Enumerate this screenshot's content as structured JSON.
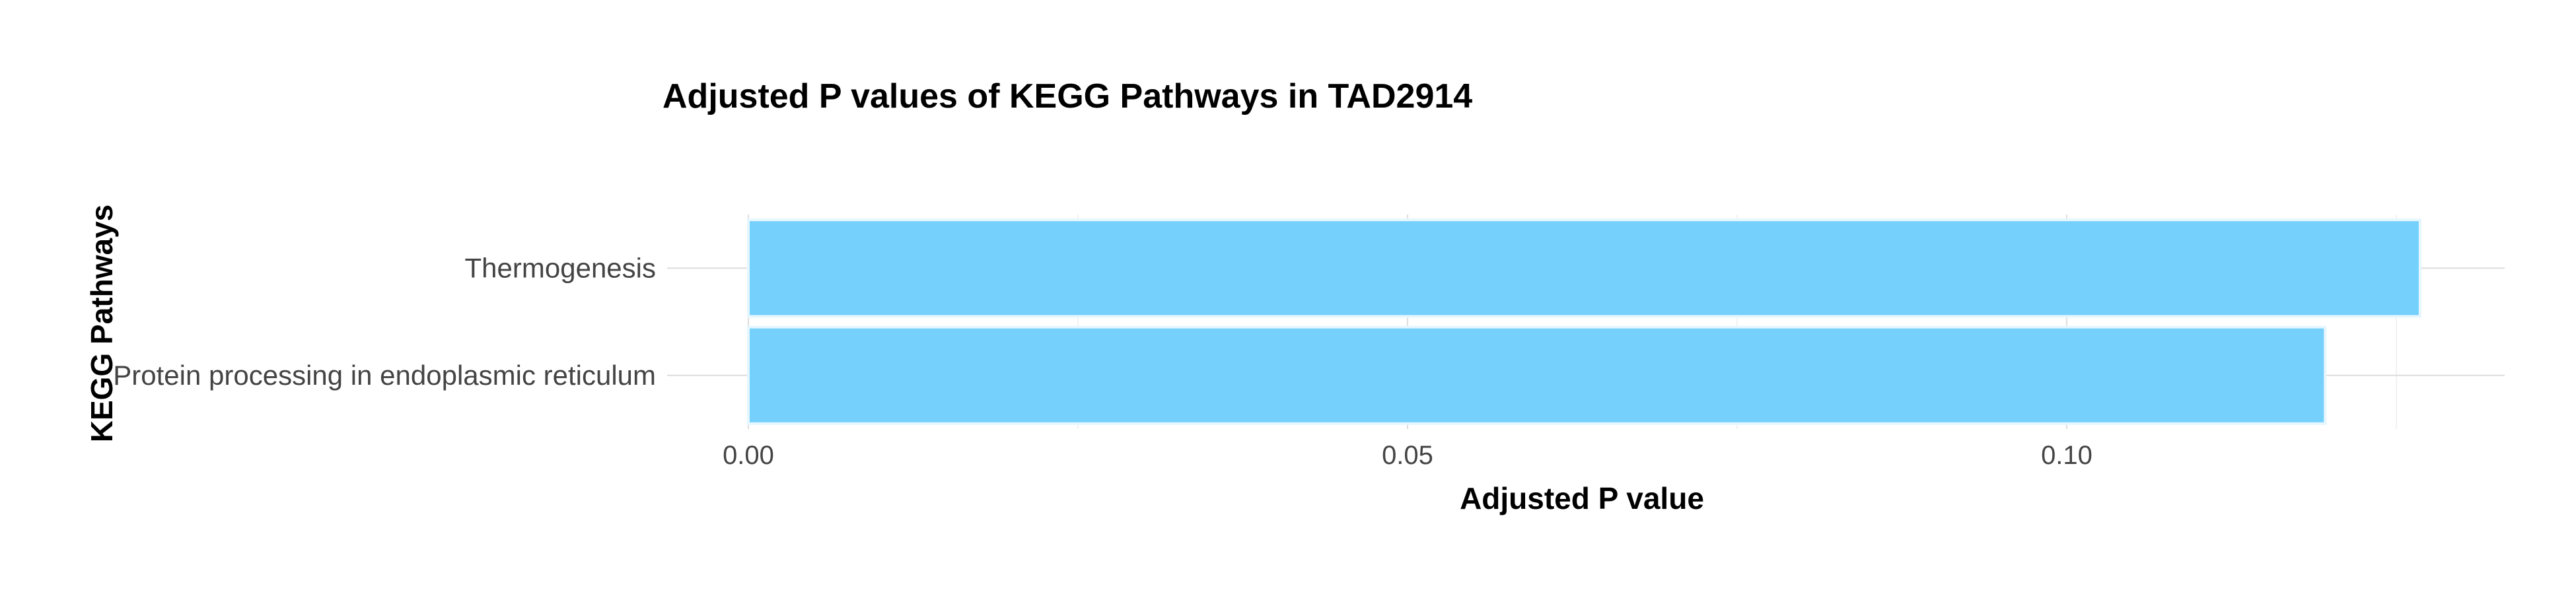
{
  "chart_data": {
    "type": "bar",
    "orientation": "horizontal",
    "title": "Adjusted P values of KEGG Pathways in TAD2914",
    "xlabel": "Adjusted P value",
    "ylabel": "KEGG Pathways",
    "categories": [
      "Thermogenesis",
      "Protein processing in endoplasmic reticulum"
    ],
    "values": [
      0.1268,
      0.1196
    ],
    "xlim": [
      0,
      0.133
    ],
    "xticks": [
      0.0,
      0.05,
      0.1
    ],
    "xtick_labels": [
      "0.00",
      "0.05",
      "0.10"
    ],
    "bar_color": "#75d1fb",
    "grid": true,
    "legend": "none"
  }
}
